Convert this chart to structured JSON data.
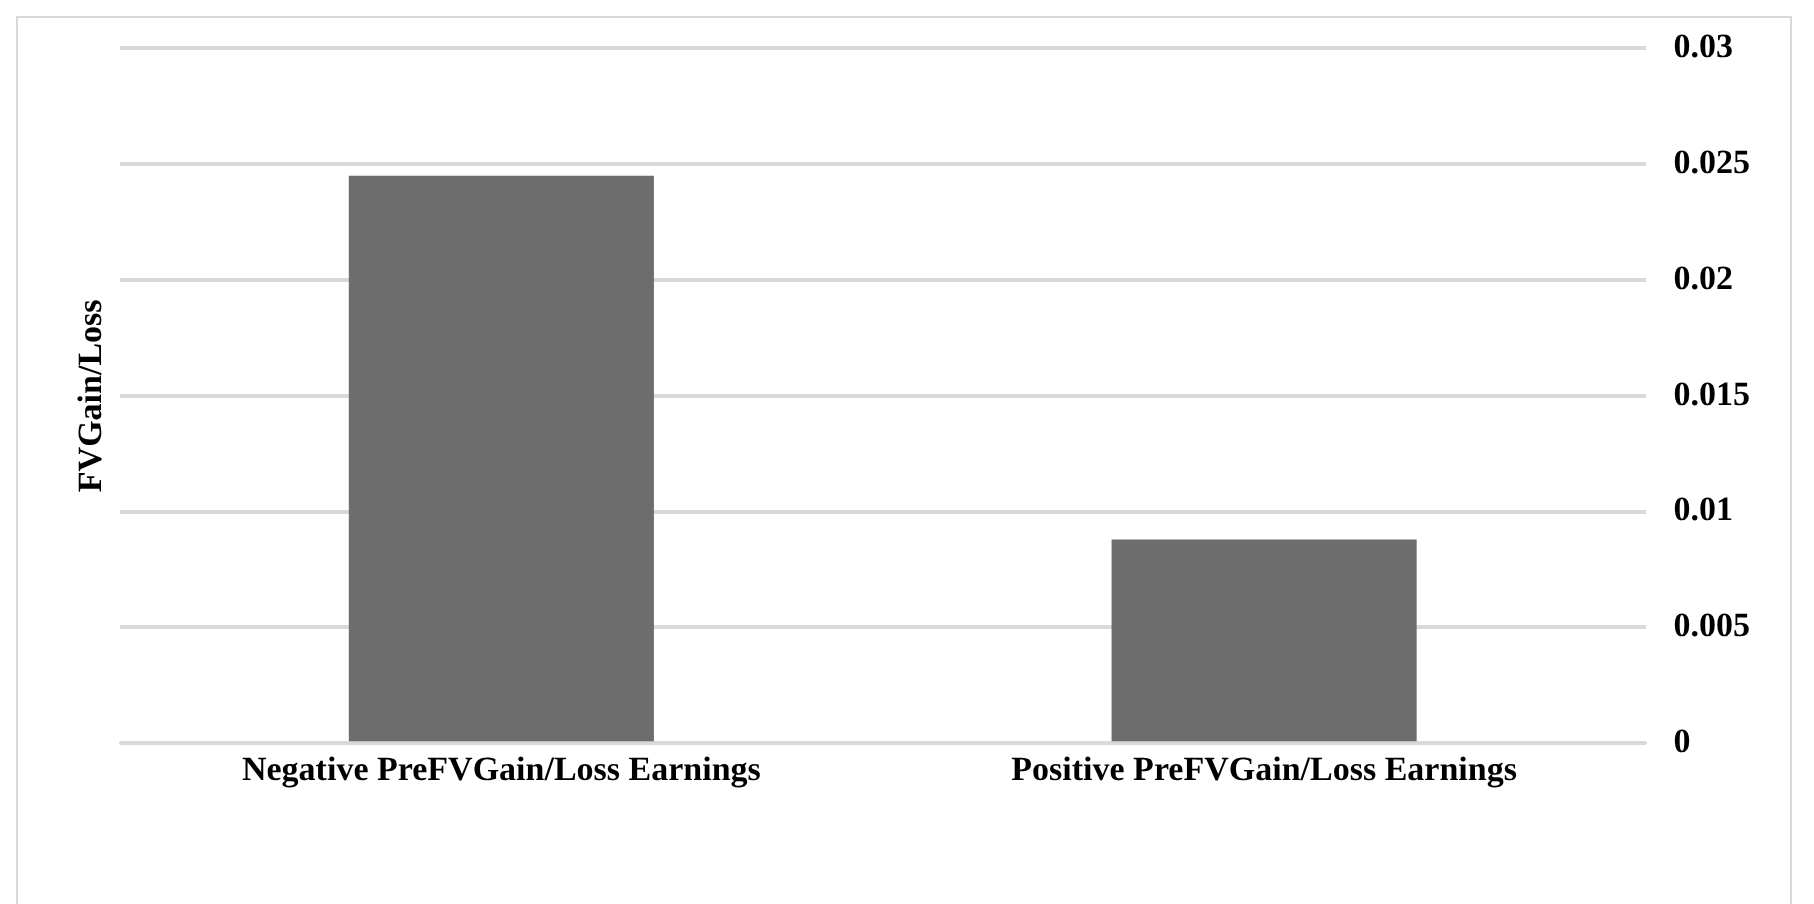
{
  "chart_data": {
    "type": "bar",
    "ylabel": "FVGain/Loss",
    "categories": [
      "Negative PreFVGain/Loss Earnings",
      "Positive PreFVGain/Loss Earnings"
    ],
    "values": [
      0.0245,
      0.0088
    ],
    "color": "#6d6d6d",
    "ylim": [
      0,
      0.03
    ],
    "yticks": [
      0,
      0.005,
      0.01,
      0.015,
      0.02,
      0.025,
      0.03
    ],
    "grid": "y",
    "legend": false
  }
}
